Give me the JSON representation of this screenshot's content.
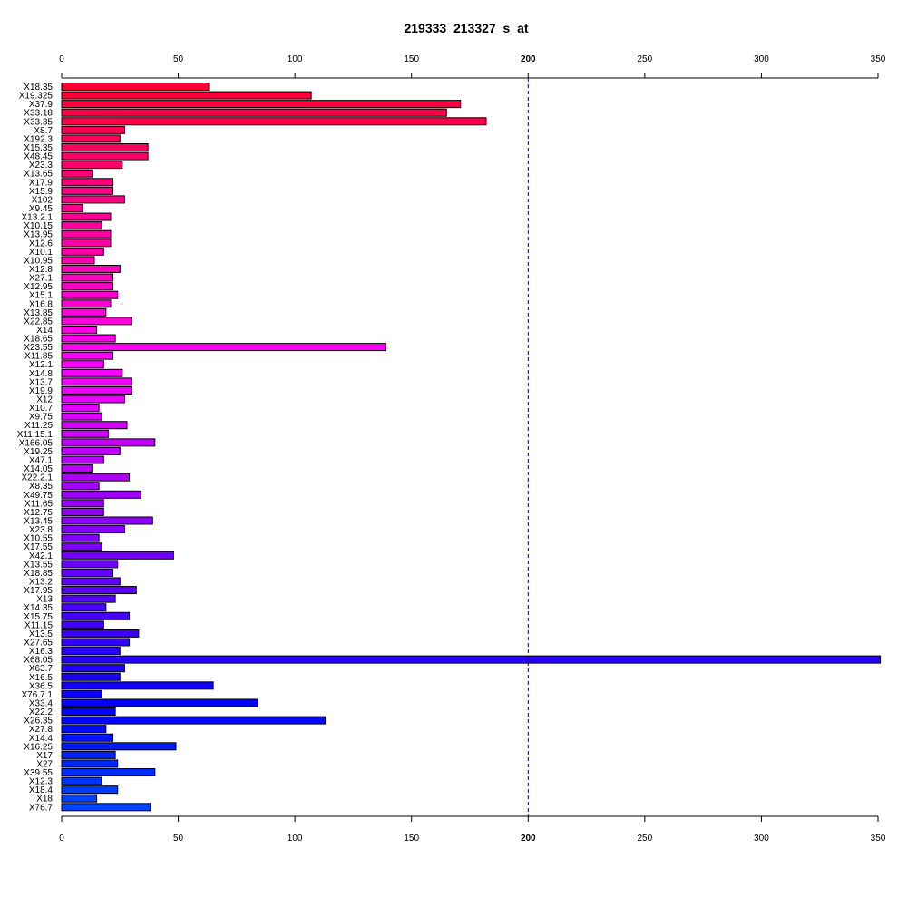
{
  "chart_data": {
    "type": "bar",
    "orientation": "horizontal",
    "title": "219333_213327_s_at",
    "xlabel": "",
    "ylabel": "",
    "xlim": [
      0,
      350
    ],
    "ticks": [
      0,
      50,
      100,
      150,
      200,
      250,
      300,
      350
    ],
    "reference_line": 200,
    "grid": false,
    "categories": [
      "X18.35",
      "X19.325",
      "X37.9",
      "X33.18",
      "X33.35",
      "X8.7",
      "X192.3",
      "X15.35",
      "X48.45",
      "X23.3",
      "X13.65",
      "X17.9",
      "X15.9",
      "X102",
      "X9.45",
      "X13.2.1",
      "X10.15",
      "X13.95",
      "X12.6",
      "X10.1",
      "X10.95",
      "X12.8",
      "X27.1",
      "X12.95",
      "X15.1",
      "X16.8",
      "X13.85",
      "X22.85",
      "X14",
      "X18.65",
      "X23.55",
      "X11.85",
      "X12.1",
      "X14.8",
      "X13.7",
      "X19.9",
      "X12",
      "X10.7",
      "X9.75",
      "X11.25",
      "X11.15.1",
      "X166.05",
      "X19.25",
      "X47.1",
      "X14.05",
      "X22.2.1",
      "X8.35",
      "X49.75",
      "X11.65",
      "X12.75",
      "X13.45",
      "X23.8",
      "X10.55",
      "X17.55",
      "X42.1",
      "X13.55",
      "X18.85",
      "X13.2",
      "X17.95",
      "X13",
      "X14.35",
      "X15.75",
      "X11.15",
      "X13.5",
      "X27.65",
      "X16.3",
      "X68.05",
      "X63.7",
      "X16.5",
      "X36.5",
      "X76.7.1",
      "X33.4",
      "X22.2",
      "X26.35",
      "X27.8",
      "X14.4",
      "X16.25",
      "X17",
      "X27",
      "X39.55",
      "X12.3",
      "X18.4",
      "X18",
      "X76.7"
    ],
    "values": [
      63,
      107,
      171,
      165,
      182,
      27,
      25,
      37,
      37,
      26,
      13,
      22,
      22,
      27,
      9,
      21,
      17,
      21,
      21,
      18,
      14,
      25,
      22,
      22,
      24,
      21,
      19,
      30,
      15,
      23,
      139,
      22,
      18,
      26,
      30,
      30,
      27,
      16,
      17,
      28,
      20,
      40,
      25,
      18,
      13,
      29,
      16,
      34,
      18,
      18,
      39,
      27,
      16,
      17,
      48,
      24,
      22,
      25,
      32,
      23,
      19,
      29,
      18,
      33,
      29,
      25,
      351,
      27,
      25,
      65,
      17,
      84,
      23,
      113,
      19,
      22,
      49,
      23,
      24,
      40,
      17,
      24,
      15,
      38
    ],
    "colors": [
      "#FF0033",
      "#FF0039",
      "#FF0040",
      "#FF0046",
      "#FF004D",
      "#FF0053",
      "#FF005A",
      "#FF0060",
      "#FF0066",
      "#FF006D",
      "#FF0073",
      "#FF007A",
      "#FF0080",
      "#FF0086",
      "#FF008D",
      "#FF0093",
      "#FF009A",
      "#FF00A0",
      "#FF00A6",
      "#FF00AD",
      "#FF00B3",
      "#FF00BA",
      "#FF00C0",
      "#FF00C6",
      "#FF00CD",
      "#FF00D3",
      "#FF00DA",
      "#FF00E0",
      "#FF00E6",
      "#FF00ED",
      "#FF00F3",
      "#FF00FA",
      "#FF00FF",
      "#F900FF",
      "#F300FF",
      "#EC00FF",
      "#E600FF",
      "#E000FF",
      "#D900FF",
      "#D300FF",
      "#CC00FF",
      "#C600FF",
      "#C000FF",
      "#B900FF",
      "#B300FF",
      "#AC00FF",
      "#A600FF",
      "#A000FF",
      "#9900FF",
      "#9300FF",
      "#8C00FF",
      "#8600FF",
      "#8000FF",
      "#7900FF",
      "#7300FF",
      "#6C00FF",
      "#6600FF",
      "#6000FF",
      "#5900FF",
      "#5300FF",
      "#4C00FF",
      "#4600FF",
      "#4000FF",
      "#3900FF",
      "#3300FF",
      "#2C00FF",
      "#2600FF",
      "#2000FF",
      "#1900FF",
      "#1300FF",
      "#0C00FF",
      "#0600FF",
      "#0000FF",
      "#0006FF",
      "#000CFF",
      "#0013FF",
      "#0019FF",
      "#0020FF",
      "#0026FF",
      "#002CFF",
      "#0033FF",
      "#0039FF",
      "#0040FF",
      "#0046FF"
    ]
  }
}
